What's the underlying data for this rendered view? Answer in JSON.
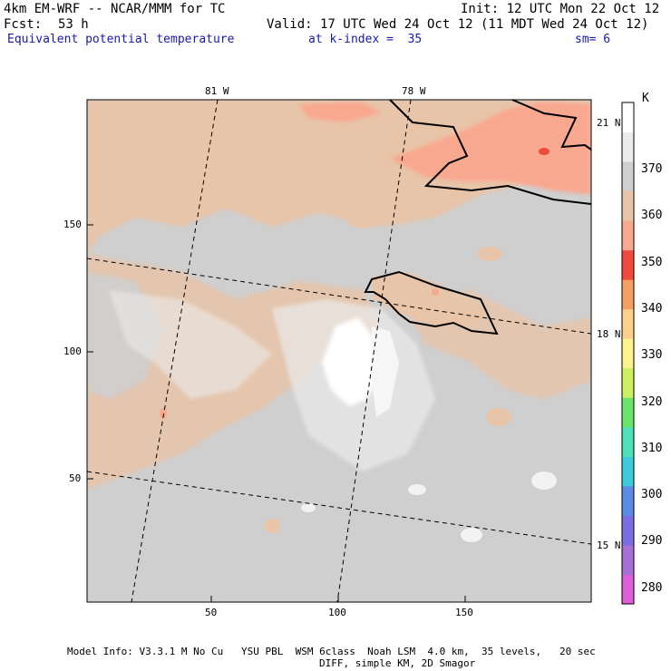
{
  "header": {
    "model": "4km EM-WRF -- NCAR/MMM for TC",
    "init": "Init: 12 UTC Mon 22 Oct 12",
    "fcst_label": "Fcst:",
    "fcst_hours": "53 h",
    "valid": "Valid: 17 UTC Wed 24 Oct 12 (11 MDT Wed 24 Oct 12)",
    "field": "Equivalent potential temperature",
    "level": "at k-index =  35",
    "smooth": "sm= 6"
  },
  "map": {
    "top_lon_labels": [
      "81 W",
      "78 W"
    ],
    "right_lat_labels": [
      "21 N",
      "18 N",
      "15 N"
    ],
    "left_grid_labels": [
      "150",
      "100",
      "50"
    ],
    "bottom_grid_labels": [
      "50",
      "100",
      "150"
    ]
  },
  "colorbar": {
    "unit": "K",
    "levels": [
      "370",
      "360",
      "350",
      "340",
      "330",
      "320",
      "310",
      "300",
      "290",
      "280"
    ],
    "colors": {
      "white": "#ffffff",
      "light_gray": "#ebebeb",
      "gray": "#cfcfcf",
      "tan": "#e8c4a8",
      "salmon": "#f9a890",
      "red": "#f04a3c",
      "orange": "#f5a060",
      "peach": "#fbd08a",
      "yellow": "#faf28c",
      "lime": "#cdf060",
      "green": "#6ae36a",
      "teal": "#4ee0b8",
      "cyan": "#3ccbd8",
      "blue": "#5a8ae6",
      "indigo": "#7a6ee0",
      "purple": "#a870d6",
      "magenta": "#dc5ed8"
    }
  },
  "footer": {
    "line1": "Model Info: V3.3.1 M No Cu   YSU PBL  WSM 6class  Noah LSM  4.0 km,  35 levels,   20 sec",
    "line2": "DIFF, simple KM, 2D Smagor"
  }
}
